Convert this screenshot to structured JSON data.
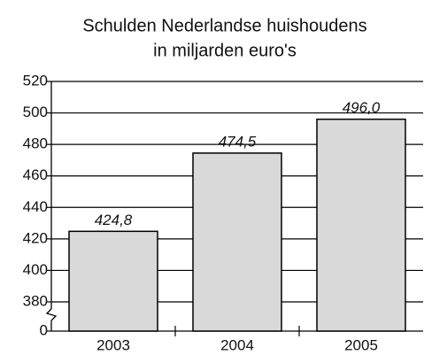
{
  "chart_data": {
    "type": "bar",
    "title": "Schulden Nederlandse huishoudens",
    "subtitle": "in miljarden euro's",
    "categories": [
      "2003",
      "2004",
      "2005"
    ],
    "values": [
      424.8,
      474.5,
      496.0
    ],
    "value_labels": [
      "424,8",
      "474,5",
      "496,0"
    ],
    "color": "#d9d9d9",
    "ylim": [
      0,
      520
    ],
    "yticks": [
      0,
      380,
      400,
      420,
      440,
      460,
      480,
      500,
      520
    ],
    "axis_break": true,
    "grid": true
  }
}
